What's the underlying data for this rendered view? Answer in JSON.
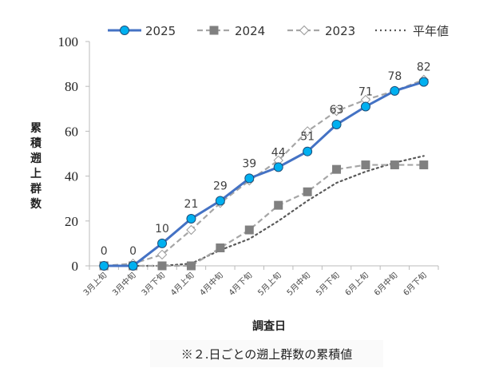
{
  "chart_data": {
    "type": "line",
    "ylabel": "累積遡上群数",
    "xlabel": "調査日",
    "caption": "※２.日ごとの遡上群数の累積値",
    "ylim": [
      0,
      100
    ],
    "yticks": [
      "0",
      "20",
      "40",
      "60",
      "80",
      "100"
    ],
    "categories": [
      "3月上旬",
      "3月中旬",
      "3月下旬",
      "4月上旬",
      "4月中旬",
      "4月下旬",
      "5月上旬",
      "5月中旬",
      "5月下旬",
      "6月上旬",
      "6月中旬",
      "6月下旬"
    ],
    "legend_position": "top",
    "series": [
      {
        "name": "2025",
        "values": [
          0,
          0,
          10,
          21,
          29,
          39,
          44,
          51,
          63,
          71,
          78,
          82
        ],
        "color": "#4472C4",
        "marker_color": "#00B0F0",
        "style": "solid",
        "marker": "circle",
        "labels": [
          "0",
          "0",
          "10",
          "21",
          "29",
          "39",
          "44",
          "51",
          "63",
          "71",
          "78",
          "82"
        ]
      },
      {
        "name": "2024",
        "values": [
          0,
          0,
          0,
          0,
          8,
          16,
          27,
          33,
          43,
          45,
          45,
          45
        ],
        "color": "#A6A6A6",
        "marker_color": "#808080",
        "style": "dashed",
        "marker": "square"
      },
      {
        "name": "2023",
        "values": [
          0,
          1,
          5,
          16,
          28,
          38,
          47,
          60,
          69,
          74,
          78,
          83
        ],
        "color": "#A6A6A6",
        "marker_color": "#ffffff",
        "style": "dashed",
        "marker": "diamond"
      },
      {
        "name": "平年値",
        "values": [
          0,
          0,
          0,
          1,
          7,
          12,
          20,
          29,
          37,
          42,
          46,
          49
        ],
        "color": "#595959",
        "style": "dotted",
        "marker": "none"
      }
    ]
  }
}
